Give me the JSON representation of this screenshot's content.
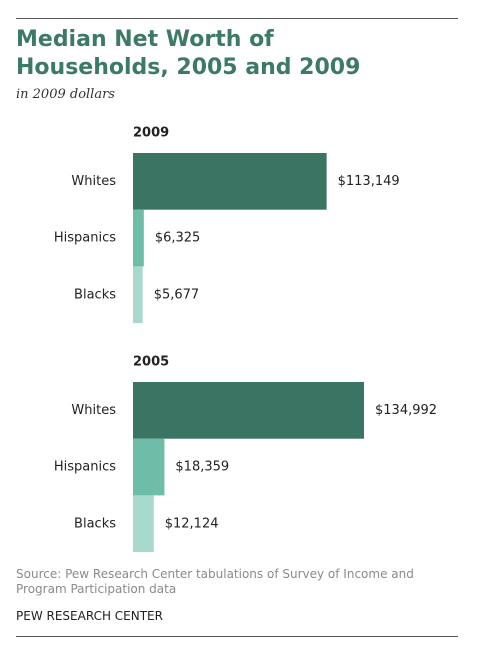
{
  "title": "Median Net Worth of Households, 2005 and 2009",
  "subtitle": "in 2009 dollars",
  "source": "Source: Pew Research Center tabulations of Survey of Income and Program Participation data",
  "footer": "PEW RESEARCH CENTER",
  "chart_data": [
    {
      "type": "bar",
      "orientation": "horizontal",
      "title": "2009",
      "categories": [
        "Whites",
        "Hispanics",
        "Blacks"
      ],
      "values": [
        113149,
        6325,
        5677
      ],
      "value_labels": [
        "$113,149",
        "$6,325",
        "$5,677"
      ],
      "colors": [
        "#3a7563",
        "#6dbda8",
        "#a9d9cd"
      ]
    },
    {
      "type": "bar",
      "orientation": "horizontal",
      "title": "2005",
      "categories": [
        "Whites",
        "Hispanics",
        "Blacks"
      ],
      "values": [
        134992,
        18359,
        12124
      ],
      "value_labels": [
        "$134,992",
        "$18,359",
        "$12,124"
      ],
      "colors": [
        "#3a7563",
        "#6dbda8",
        "#a9d9cd"
      ]
    }
  ]
}
